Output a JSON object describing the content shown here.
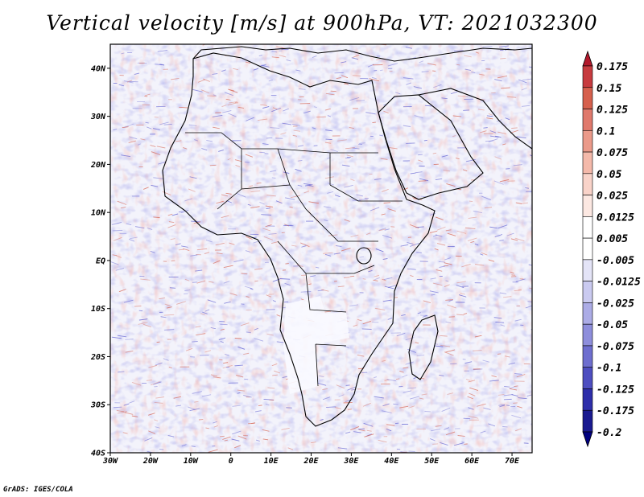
{
  "title": "Vertical velocity [m/s] at 900hPa, VT: 2021032300",
  "credit": "GrADS: IGES/COLA",
  "map": {
    "lon_range": [
      -30,
      75
    ],
    "lat_range": [
      -40,
      45
    ],
    "x_ticks": [
      "30W",
      "20W",
      "10W",
      "0",
      "10E",
      "20E",
      "30E",
      "40E",
      "50E",
      "60E",
      "70E"
    ],
    "y_ticks": [
      "40N",
      "30N",
      "20N",
      "10N",
      "EQ",
      "10S",
      "20S",
      "30S",
      "40S"
    ]
  },
  "colorbar": {
    "labels": [
      "0.175",
      "0.15",
      "0.125",
      "0.1",
      "0.075",
      "0.05",
      "0.025",
      "0.0125",
      "0.005",
      "-0.005",
      "-0.0125",
      "-0.025",
      "-0.05",
      "-0.075",
      "-0.1",
      "-0.125",
      "-0.175",
      "-0.2"
    ],
    "colors": [
      "#b2182b",
      "#c73b3f",
      "#d6604d",
      "#e0796c",
      "#eb9a8a",
      "#f4b9aa",
      "#f9d3c9",
      "#fce8e2",
      "#ffffff",
      "#ffffff",
      "#e4e4f7",
      "#cacaf0",
      "#acace6",
      "#8e8edc",
      "#6e6ecf",
      "#4e4ec0",
      "#2e2eaa",
      "#1a1a90",
      "#000080"
    ]
  },
  "colors": {
    "updraft": "#d6604d",
    "downdraft": "#5a5ad0",
    "coast": "#000000"
  }
}
